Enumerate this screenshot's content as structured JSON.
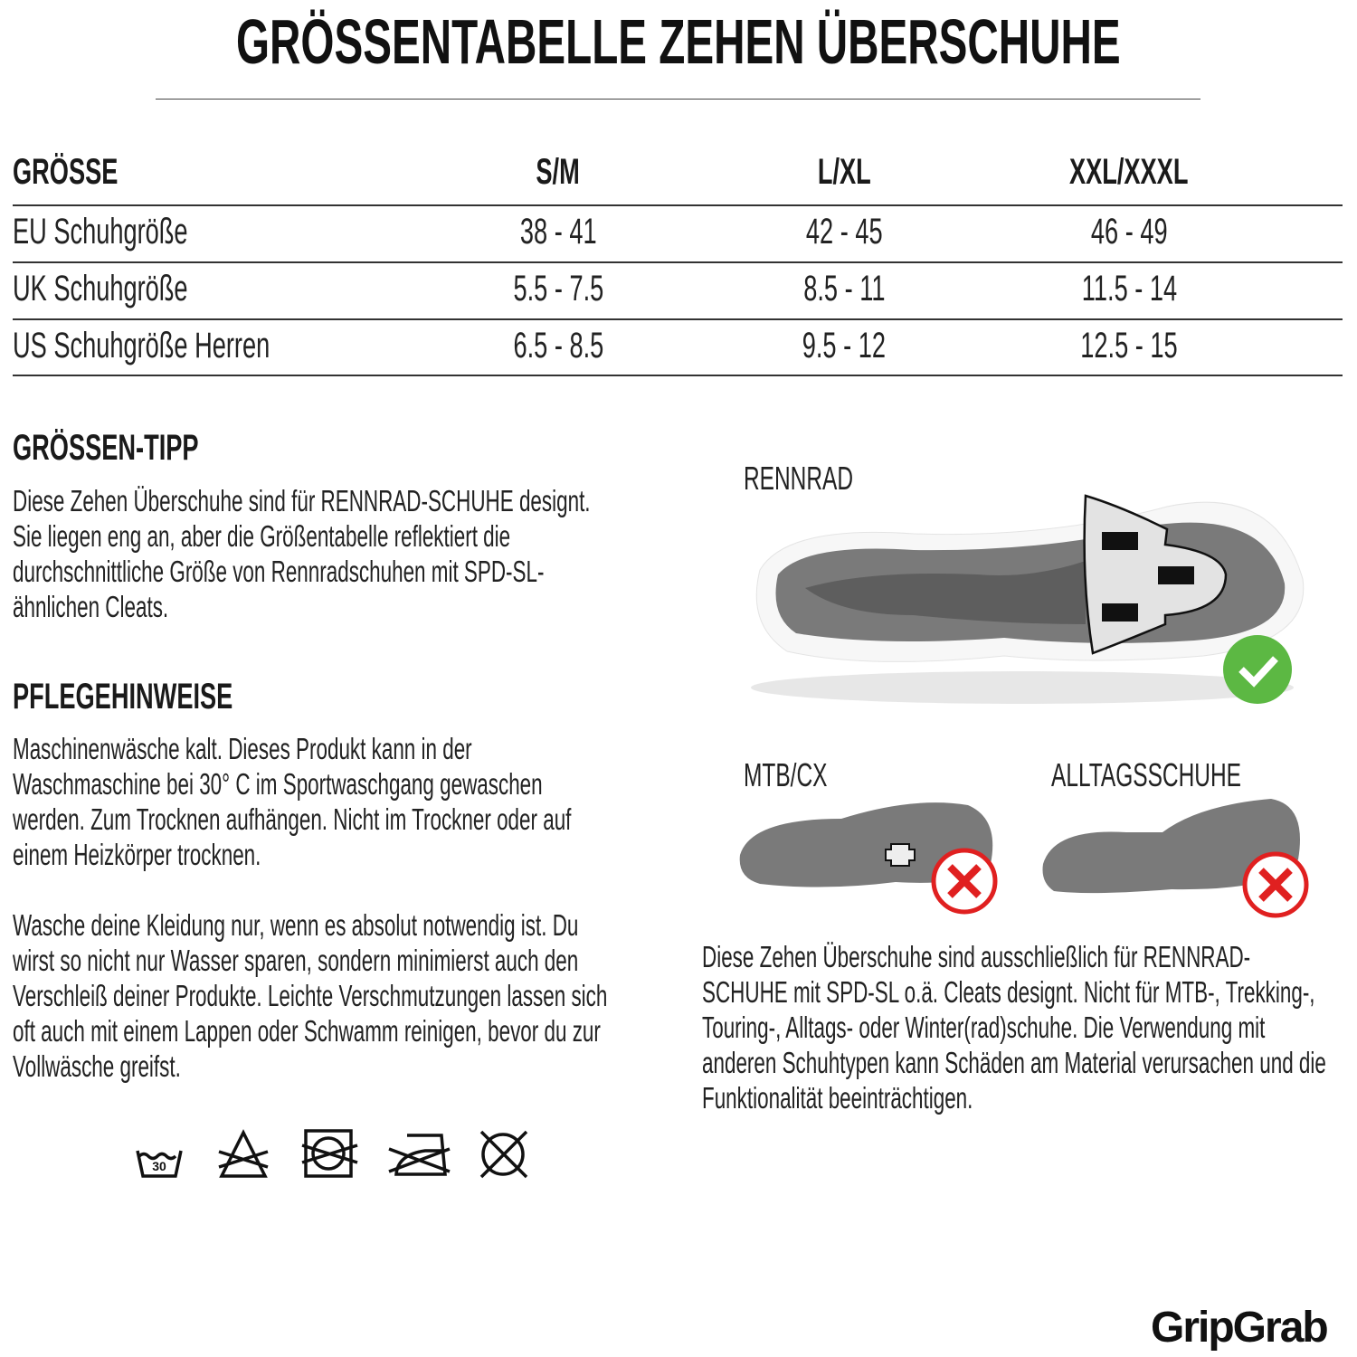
{
  "title": "GRÖSSENTABELLE ZEHEN ÜBERSCHUHE",
  "table": {
    "headers": [
      "GRÖSSE",
      "S/M",
      "L/XL",
      "XXL/XXXL"
    ],
    "rows": [
      {
        "label": "EU Schuhgröße",
        "values": [
          "38 - 41",
          "42 - 45",
          "46 - 49"
        ]
      },
      {
        "label": "UK Schuhgröße",
        "values": [
          "5.5 - 7.5",
          "8.5 - 11",
          "11.5 - 14"
        ]
      },
      {
        "label": "US Schuhgröße Herren",
        "values": [
          "6.5 - 8.5",
          "9.5 - 12",
          "12.5 - 15"
        ]
      }
    ]
  },
  "tip": {
    "heading": "GRÖSSEN-TIPP",
    "lines": [
      "Diese Zehen Überschuhe sind für RENNRAD-SCHUHE designt.",
      "Sie liegen eng an, aber die Größentabelle reflektiert die",
      "durchschnittliche Größe von Rennradschuhen mit SPD-SL-",
      "ähnlichen Cleats."
    ]
  },
  "care": {
    "heading": "PFLEGEHINWEISE",
    "lines1": [
      "Maschinenwäsche kalt. Dieses Produkt kann in der",
      "Waschmaschine bei 30° C im Sportwaschgang gewaschen",
      "werden. Zum Trocknen aufhängen. Nicht im Trockner oder auf",
      "einem Heizkörper trocknen."
    ],
    "lines2": [
      "Wasche deine Kleidung nur, wenn es absolut notwendig ist. Du",
      "wirst so nicht nur Wasser sparen, sondern minimierst auch den",
      "Verschleiß deiner Produkte. Leichte Verschmutzungen lassen sich",
      "oft auch mit einem Lappen oder Schwamm reinigen, bevor du zur",
      "Vollwäsche greifst."
    ],
    "icons": [
      "wash-30-icon",
      "no-bleach-icon",
      "no-tumble-dry-icon",
      "no-iron-icon",
      "no-dry-clean-icon"
    ],
    "wash_temp": "30"
  },
  "shoes": {
    "road": {
      "label": "RENNRAD",
      "status": "check-icon"
    },
    "mtb": {
      "label": "MTB/CX",
      "status": "cross-icon"
    },
    "casual": {
      "label": "ALLTAGSSCHUHE",
      "status": "cross-icon"
    },
    "note_lines": [
      "Diese Zehen Überschuhe sind ausschließlich für RENNRAD-",
      "SCHUHE mit SPD-SL o.ä. Cleats designt. Nicht für MTB-, Trekking-,",
      "Touring-, Alltags- oder Winter(rad)schuhe. Die Verwendung mit",
      "anderen Schuhtypen kann Schäden am Material verursachen und die",
      "Funktionalität beeinträchtigen."
    ]
  },
  "colors": {
    "check": "#5cb843",
    "cross": "#e02020",
    "sole": "#7a7a7a"
  },
  "brand": "GripGrab"
}
